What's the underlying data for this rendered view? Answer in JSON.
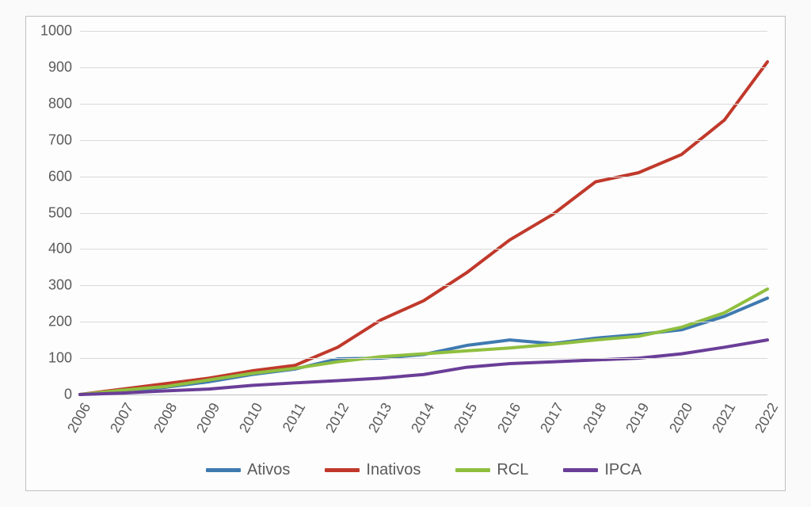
{
  "chart": {
    "type": "line",
    "background_color": "#fdfdfd",
    "border_color": "#bfbfbf",
    "grid_color": "#d9d9d9",
    "tick_font_size": 18,
    "tick_color": "#5a5a5a",
    "legend_font_size": 20,
    "line_width": 4,
    "ylim": [
      0,
      1000
    ],
    "ytick_step": 100,
    "yticks": [
      0,
      100,
      200,
      300,
      400,
      500,
      600,
      700,
      800,
      900,
      1000
    ],
    "x_categories": [
      "2006",
      "2007",
      "2008",
      "2009",
      "2010",
      "2011",
      "2012",
      "2013",
      "2014",
      "2015",
      "2016",
      "2017",
      "2018",
      "2019",
      "2020",
      "2021",
      "2022"
    ],
    "xtick_rotation_deg": -60,
    "series": [
      {
        "id": "ativos",
        "label": "Ativos",
        "color": "#3f7ab0",
        "values": [
          0,
          10,
          20,
          35,
          55,
          70,
          98,
          100,
          110,
          135,
          150,
          140,
          155,
          165,
          178,
          215,
          265
        ]
      },
      {
        "id": "inativos",
        "label": "Inativos",
        "color": "#c0392b",
        "values": [
          0,
          15,
          30,
          45,
          65,
          80,
          130,
          205,
          258,
          335,
          425,
          495,
          585,
          610,
          660,
          755,
          915
        ]
      },
      {
        "id": "rcl",
        "label": "RCL",
        "color": "#8fbf3f",
        "values": [
          0,
          12,
          22,
          40,
          58,
          72,
          90,
          104,
          112,
          120,
          128,
          138,
          150,
          160,
          185,
          225,
          290
        ]
      },
      {
        "id": "ipca",
        "label": "IPCA",
        "color": "#6a3e98",
        "values": [
          0,
          4,
          10,
          15,
          25,
          32,
          38,
          45,
          55,
          75,
          85,
          90,
          95,
          100,
          112,
          130,
          150
        ]
      }
    ],
    "legend_position": "bottom-center"
  }
}
